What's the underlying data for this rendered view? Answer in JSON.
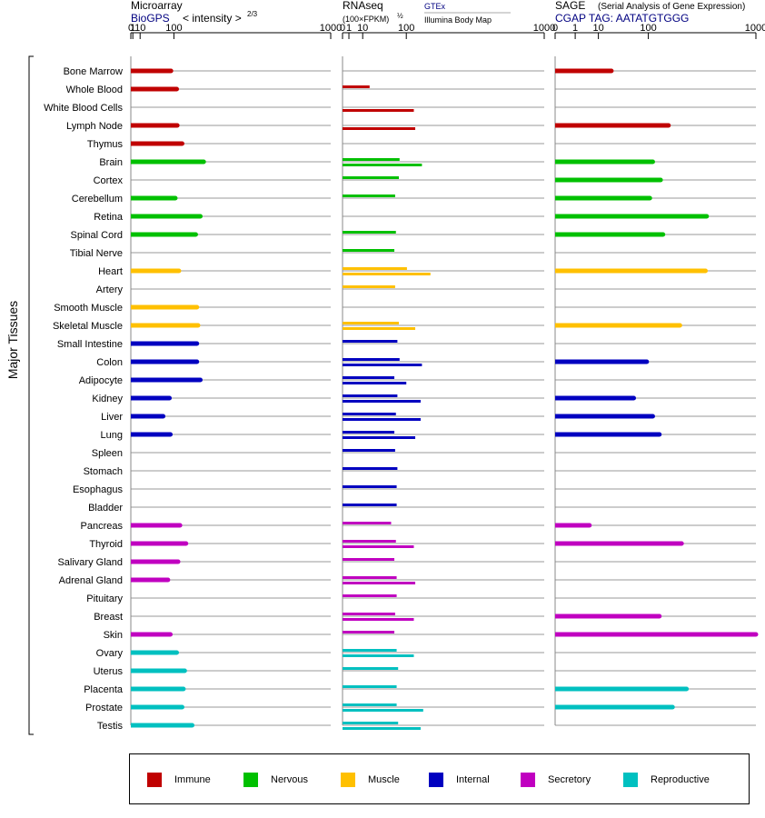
{
  "colors": {
    "Immune": "#c00000",
    "Nervous": "#00c000",
    "Muscle": "#ffc000",
    "Internal": "#0000c0",
    "Secretory": "#c000c0",
    "Reproductive": "#00c0c0",
    "link": "#000080",
    "grid": "#999999"
  },
  "y_axis_label": "Major Tissues",
  "legend": [
    {
      "group": "Immune",
      "label": "Immune"
    },
    {
      "group": "Nervous",
      "label": "Nervous"
    },
    {
      "group": "Muscle",
      "label": "Muscle"
    },
    {
      "group": "Internal",
      "label": "Internal"
    },
    {
      "group": "Secretory",
      "label": "Secretory"
    },
    {
      "group": "Reproductive",
      "label": "Reproductive"
    }
  ],
  "chart_data": [
    {
      "type": "bar",
      "panel": "microarray",
      "title": "Microarray",
      "link_text": "BioGPS",
      "subtitle": "< intensity >",
      "subtitle_exponent": "2/3",
      "scale": "power-2/3",
      "tick_labels": [
        "0",
        "1",
        "10",
        "100",
        "1000"
      ],
      "ticks": [
        0,
        1,
        10,
        100,
        1000
      ],
      "xlim": [
        0,
        1000
      ],
      "categories": [
        "Bone Marrow",
        "Whole Blood",
        "White Blood Cells",
        "Lymph Node",
        "Thymus",
        "Brain",
        "Cortex",
        "Cerebellum",
        "Retina",
        "Spinal Cord",
        "Tibial Nerve",
        "Heart",
        "Artery",
        "Smooth Muscle",
        "Skeletal Muscle",
        "Small Intestine",
        "Colon",
        "Adipocyte",
        "Kidney",
        "Liver",
        "Lung",
        "Spleen",
        "Stomach",
        "Esophagus",
        "Bladder",
        "Pancreas",
        "Thyroid",
        "Salivary Gland",
        "Adrenal Gland",
        "Pituitary",
        "Breast",
        "Skin",
        "Ovary",
        "Uterus",
        "Placenta",
        "Prostate",
        "Testis"
      ],
      "groups": [
        "Immune",
        "Immune",
        "Immune",
        "Immune",
        "Immune",
        "Nervous",
        "Nervous",
        "Nervous",
        "Nervous",
        "Nervous",
        "Nervous",
        "Muscle",
        "Muscle",
        "Muscle",
        "Muscle",
        "Internal",
        "Internal",
        "Internal",
        "Internal",
        "Internal",
        "Internal",
        "Internal",
        "Internal",
        "Internal",
        "Internal",
        "Secretory",
        "Secretory",
        "Secretory",
        "Secretory",
        "Secretory",
        "Secretory",
        "Secretory",
        "Reproductive",
        "Reproductive",
        "Reproductive",
        "Reproductive",
        "Reproductive"
      ],
      "series": [
        {
          "values": [
            90,
            110,
            null,
            112,
            130,
            220,
            null,
            105,
            205,
            185,
            null,
            118,
            null,
            190,
            195,
            190,
            190,
            205,
            85,
            65,
            88,
            null,
            null,
            null,
            null,
            122,
            145,
            115,
            80,
            null,
            null,
            88,
            110,
            140,
            135,
            130,
            170
          ]
        }
      ]
    },
    {
      "type": "bar",
      "panel": "rnaseq",
      "title": "RNAseq",
      "subtitle": "(100×FPKM)",
      "subtitle_exponent": "½",
      "sources": [
        "GTEx",
        "Illumina Body Map"
      ],
      "scale": "power-1/2",
      "tick_labels": [
        "0",
        "1",
        "10",
        "100",
        "1000"
      ],
      "ticks": [
        0,
        1,
        10,
        100,
        1000
      ],
      "xlim": [
        0,
        1000
      ],
      "categories": [
        "Bone Marrow",
        "Whole Blood",
        "White Blood Cells",
        "Lymph Node",
        "Thymus",
        "Brain",
        "Cortex",
        "Cerebellum",
        "Retina",
        "Spinal Cord",
        "Tibial Nerve",
        "Heart",
        "Artery",
        "Smooth Muscle",
        "Skeletal Muscle",
        "Small Intestine",
        "Colon",
        "Adipocyte",
        "Kidney",
        "Liver",
        "Lung",
        "Spleen",
        "Stomach",
        "Esophagus",
        "Bladder",
        "Pancreas",
        "Thyroid",
        "Salivary Gland",
        "Adrenal Gland",
        "Pituitary",
        "Breast",
        "Skin",
        "Ovary",
        "Uterus",
        "Placenta",
        "Prostate",
        "Testis"
      ],
      "groups": [
        "Immune",
        "Immune",
        "Immune",
        "Immune",
        "Immune",
        "Nervous",
        "Nervous",
        "Nervous",
        "Nervous",
        "Nervous",
        "Nervous",
        "Muscle",
        "Muscle",
        "Muscle",
        "Muscle",
        "Internal",
        "Internal",
        "Internal",
        "Internal",
        "Internal",
        "Internal",
        "Internal",
        "Internal",
        "Internal",
        "Internal",
        "Secretory",
        "Secretory",
        "Secretory",
        "Secretory",
        "Secretory",
        "Secretory",
        "Secretory",
        "Reproductive",
        "Reproductive",
        "Reproductive",
        "Reproductive",
        "Reproductive"
      ],
      "series": [
        {
          "name": "GTEx",
          "values": [
            null,
            18,
            null,
            null,
            null,
            80,
            78,
            68,
            null,
            70,
            66,
            102,
            68,
            null,
            78,
            74,
            80,
            66,
            74,
            70,
            66,
            68,
            74,
            72,
            72,
            58,
            70,
            66,
            72,
            72,
            68,
            66,
            72,
            76,
            72,
            72,
            76
          ]
        },
        {
          "name": "Illumina Body Map",
          "values": [
            null,
            null,
            125,
            130,
            null,
            155,
            null,
            null,
            null,
            null,
            null,
            190,
            null,
            null,
            130,
            null,
            155,
            100,
            150,
            150,
            130,
            null,
            null,
            null,
            null,
            null,
            125,
            null,
            130,
            null,
            125,
            null,
            125,
            null,
            null,
            160,
            150
          ]
        }
      ]
    },
    {
      "type": "bar",
      "panel": "sage",
      "title": "SAGE",
      "title_note": "(Serial Analysis of Gene Expression)",
      "link_text": "CGAP  TAG: AATATGTGGG",
      "scale": "power-1/3",
      "tick_labels": [
        "0",
        "1",
        "10",
        "100",
        "1000"
      ],
      "ticks": [
        0,
        1,
        10,
        100,
        1000
      ],
      "xlim": [
        0,
        1000
      ],
      "categories": [
        "Bone Marrow",
        "Whole Blood",
        "White Blood Cells",
        "Lymph Node",
        "Thymus",
        "Brain",
        "Cortex",
        "Cerebellum",
        "Retina",
        "Spinal Cord",
        "Tibial Nerve",
        "Heart",
        "Artery",
        "Smooth Muscle",
        "Skeletal Muscle",
        "Small Intestine",
        "Colon",
        "Adipocyte",
        "Kidney",
        "Liver",
        "Lung",
        "Spleen",
        "Stomach",
        "Esophagus",
        "Bladder",
        "Pancreas",
        "Thyroid",
        "Salivary Gland",
        "Adrenal Gland",
        "Pituitary",
        "Breast",
        "Skin",
        "Ovary",
        "Uterus",
        "Placenta",
        "Prostate",
        "Testis"
      ],
      "groups": [
        "Immune",
        "Immune",
        "Immune",
        "Immune",
        "Immune",
        "Nervous",
        "Nervous",
        "Nervous",
        "Nervous",
        "Nervous",
        "Nervous",
        "Muscle",
        "Muscle",
        "Muscle",
        "Muscle",
        "Internal",
        "Internal",
        "Internal",
        "Internal",
        "Internal",
        "Internal",
        "Internal",
        "Internal",
        "Internal",
        "Internal",
        "Secretory",
        "Secretory",
        "Secretory",
        "Secretory",
        "Secretory",
        "Secretory",
        "Secretory",
        "Reproductive",
        "Reproductive",
        "Reproductive",
        "Reproductive",
        "Reproductive"
      ],
      "series": [
        {
          "values": [
            22,
            null,
            null,
            180,
            null,
            115,
            145,
            105,
            430,
            155,
            null,
            420,
            null,
            null,
            240,
            null,
            95,
            null,
            60,
            115,
            140,
            null,
            null,
            null,
            null,
            5,
            250,
            null,
            null,
            null,
            140,
            1000,
            null,
            null,
            280,
            200,
            null
          ]
        }
      ]
    }
  ]
}
